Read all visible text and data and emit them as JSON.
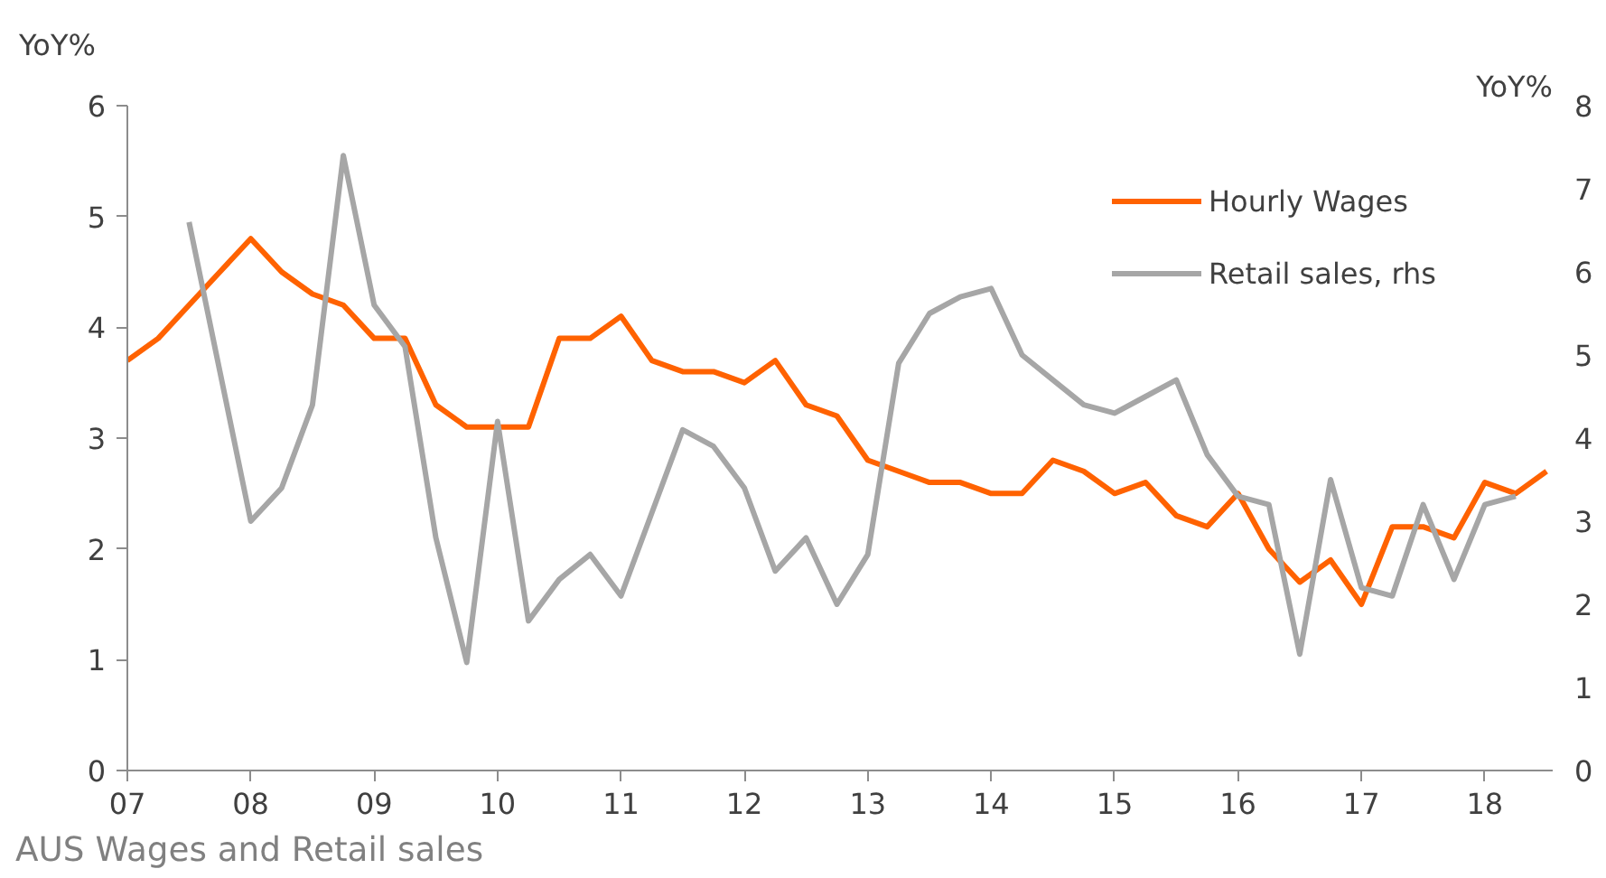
{
  "chart_data": {
    "type": "line",
    "ylabel": "YoY%",
    "y2label": "YoY%",
    "annotations": [
      "AUS Wages and Retail sales"
    ],
    "x": [
      2007.0,
      2007.25,
      2007.5,
      2007.75,
      2008.0,
      2008.25,
      2008.5,
      2008.75,
      2009.0,
      2009.25,
      2009.5,
      2009.75,
      2010.0,
      2010.25,
      2010.5,
      2010.75,
      2011.0,
      2011.25,
      2011.5,
      2011.75,
      2012.0,
      2012.25,
      2012.5,
      2012.75,
      2013.0,
      2013.25,
      2013.5,
      2013.75,
      2014.0,
      2014.25,
      2014.5,
      2014.75,
      2015.0,
      2015.25,
      2015.5,
      2015.75,
      2016.0,
      2016.25,
      2016.5,
      2016.75,
      2017.0,
      2017.25,
      2017.5,
      2017.75,
      2018.0,
      2018.25,
      2018.5
    ],
    "series": [
      {
        "name": "Hourly Wages",
        "color": "#ff6200",
        "values": [
          3.7,
          3.9,
          4.2,
          4.5,
          4.8,
          4.5,
          4.3,
          4.2,
          3.9,
          3.9,
          3.3,
          3.1,
          3.1,
          3.1,
          3.9,
          3.9,
          4.1,
          3.7,
          3.6,
          3.6,
          3.5,
          3.7,
          3.3,
          3.2,
          2.8,
          2.7,
          2.6,
          2.6,
          2.5,
          2.5,
          2.8,
          2.7,
          2.5,
          2.6,
          2.3,
          2.2,
          2.5,
          2.0,
          1.7,
          1.9,
          1.5,
          2.2,
          2.2,
          2.1,
          2.6,
          2.5,
          2.7
        ]
      },
      {
        "name": "Retail sales, rhs",
        "color": "#a6a6a6",
        "axis": "y2",
        "values": [
          null,
          null,
          6.6,
          4.8,
          3.0,
          3.4,
          4.4,
          7.4,
          5.6,
          5.1,
          2.8,
          1.3,
          4.2,
          1.8,
          2.3,
          2.6,
          2.1,
          3.1,
          4.1,
          3.9,
          3.4,
          2.4,
          2.8,
          2.0,
          2.6,
          4.9,
          5.5,
          5.7,
          5.8,
          5.0,
          4.7,
          4.4,
          4.3,
          4.5,
          4.7,
          3.8,
          3.3,
          3.2,
          1.4,
          3.5,
          2.2,
          2.1,
          3.2,
          2.3,
          3.2,
          3.3,
          null
        ]
      }
    ],
    "xlim": [
      2007,
      2018.55
    ],
    "xticks": [
      {
        "value": 2007,
        "label": "07"
      },
      {
        "value": 2008,
        "label": "08"
      },
      {
        "value": 2009,
        "label": "09"
      },
      {
        "value": 2010,
        "label": "10"
      },
      {
        "value": 2011,
        "label": "11"
      },
      {
        "value": 2012,
        "label": "12"
      },
      {
        "value": 2013,
        "label": "13"
      },
      {
        "value": 2014,
        "label": "14"
      },
      {
        "value": 2015,
        "label": "15"
      },
      {
        "value": 2016,
        "label": "16"
      },
      {
        "value": 2017,
        "label": "17"
      },
      {
        "value": 2018,
        "label": "18"
      }
    ],
    "ylim": [
      0,
      6
    ],
    "yticks": [
      0,
      1,
      2,
      3,
      4,
      5,
      6
    ],
    "y2lim": [
      0,
      8
    ],
    "y2ticks": [
      0,
      1,
      2,
      3,
      4,
      5,
      6,
      7,
      8
    ],
    "legend": "top right",
    "grid": false,
    "marker": "none",
    "line_style": "solid"
  }
}
